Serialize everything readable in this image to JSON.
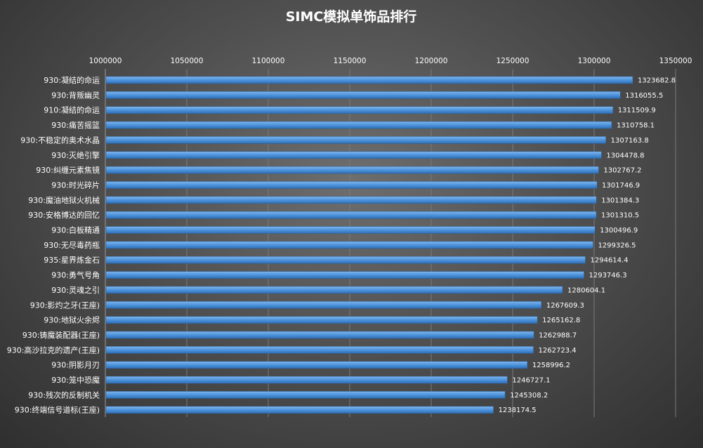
{
  "chart_data": {
    "type": "bar",
    "orientation": "horizontal",
    "title": "SIMC模拟单饰品排行",
    "xlabel": "",
    "ylabel": "",
    "xlim": [
      1000000,
      1350000
    ],
    "x_ticks": [
      "1000000",
      "1050000",
      "1100000",
      "1150000",
      "1200000",
      "1250000",
      "1300000",
      "1350000"
    ],
    "x_axis_position": "top",
    "grid": true,
    "legend": "none",
    "bar_color": "#4a90d9",
    "categories": [
      "930:凝结的命运",
      "930:背叛幽灵",
      "910:凝结的命运",
      "930:痛苦摇篮",
      "930:不稳定的奥术水晶",
      "930:灭绝引擎",
      "930:纠缠元素焦镜",
      "930:时光碎片",
      "930:魔油地狱火机械",
      "930:安格博达的回忆",
      "930:白板精通",
      "930:无尽毒药瓶",
      "935:星界炼金石",
      "930:勇气号角",
      "930:灵魂之引",
      "930:影灼之牙(王座)",
      "930:地狱火余烬",
      "930:铸魔装配器(王座)",
      "930:高沙拉克的遗产(王座)",
      "930:阴影月刃",
      "930:笼中恐魔",
      "930:残次的反制机关",
      "930:终端信号道标(王座)"
    ],
    "values": [
      1323682.8,
      1316055.5,
      1311509.9,
      1310758.1,
      1307163.8,
      1304478.8,
      1302767.2,
      1301746.9,
      1301384.3,
      1301310.5,
      1300496.9,
      1299326.5,
      1294614.4,
      1293746.3,
      1280604.1,
      1267609.3,
      1265162.8,
      1262988.7,
      1262723.4,
      1258996.2,
      1246727.1,
      1245308.2,
      1238174.5
    ],
    "value_labels": [
      "1323682.8",
      "1316055.5",
      "1311509.9",
      "1310758.1",
      "1307163.8",
      "1304478.8",
      "1302767.2",
      "1301746.9",
      "1301384.3",
      "1301310.5",
      "1300496.9",
      "1299326.5",
      "1294614.4",
      "1293746.3",
      "1280604.1",
      "1267609.3",
      "1265162.8",
      "1262988.7",
      "1262723.4",
      "1258996.2",
      "1246727.1",
      "1245308.2",
      "1238174.5"
    ]
  }
}
